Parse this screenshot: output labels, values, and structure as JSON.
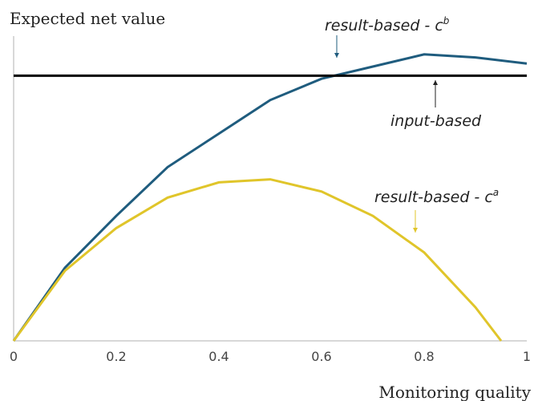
{
  "chart_data": {
    "type": "line",
    "ylabel": "Expected net value",
    "xlabel": "Monitoring quality",
    "xlim": [
      0,
      1
    ],
    "xticks": [
      0,
      0.2,
      0.4,
      0.6,
      0.8,
      1
    ],
    "ylim": [
      0,
      100
    ],
    "series": [
      {
        "name": "result-based - c",
        "sup": "b",
        "color": "#1f5c7e",
        "x": [
          0,
          0.1,
          0.2,
          0.3,
          0.4,
          0.5,
          0.6,
          0.7,
          0.8,
          0.9,
          1
        ],
        "values": [
          0,
          24,
          41,
          57,
          68,
          79,
          86,
          90,
          94,
          93,
          91
        ]
      },
      {
        "name": "input-based",
        "color": "#000000",
        "x": [
          0,
          1
        ],
        "values": [
          87,
          87
        ]
      },
      {
        "name": "result-based - c",
        "sup": "a",
        "color": "#e0c52a",
        "x": [
          0,
          0.1,
          0.2,
          0.3,
          0.4,
          0.5,
          0.6,
          0.7,
          0.8,
          0.9,
          0.95
        ],
        "values": [
          0,
          23,
          37,
          47,
          52,
          53,
          49,
          41,
          29,
          11,
          0
        ]
      }
    ]
  }
}
